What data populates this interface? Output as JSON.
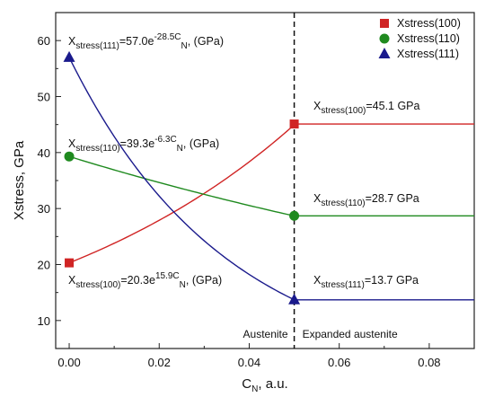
{
  "chart_data": {
    "type": "line",
    "xlabel": "C_N, a.u.",
    "ylabel": "Xstress, GPa",
    "xlim": [
      -0.003,
      0.09
    ],
    "ylim": [
      5,
      65
    ],
    "xticks": [
      "0.00",
      "0.02",
      "0.04",
      "0.06",
      "0.08"
    ],
    "xtick_values": [
      0,
      0.02,
      0.04,
      0.06,
      0.08
    ],
    "yticks": [
      "10",
      "20",
      "30",
      "40",
      "50",
      "60"
    ],
    "ytick_values": [
      10,
      20,
      30,
      40,
      50,
      60
    ],
    "grid": false,
    "legend_position": "top-right",
    "divider_x": 0.05,
    "regions": [
      "Austenite",
      "Expanded austenite"
    ],
    "series": [
      {
        "name": "Xstress(100)",
        "color": "#d02424",
        "marker": "square",
        "a": 20.3,
        "k": 15.9,
        "points": [
          [
            0,
            20.3
          ],
          [
            0.05,
            45.1
          ]
        ],
        "plateau": 45.1,
        "formula_label": "X_stress(100)=20.3e^15.9C_N, (GPa)",
        "value_label": "X_stress(100)=45.1 GPa"
      },
      {
        "name": "Xstress(110)",
        "color": "#1f8a1f",
        "marker": "circle",
        "a": 39.3,
        "k": -6.3,
        "points": [
          [
            0,
            39.3
          ],
          [
            0.05,
            28.7
          ]
        ],
        "plateau": 28.7,
        "formula_label": "X_stress(110)=39.3e^-6.3C_N, (GPa)",
        "value_label": "X_stress(110)=28.7 GPa"
      },
      {
        "name": "Xstress(111)",
        "color": "#1a1a8c",
        "marker": "triangle",
        "a": 57.0,
        "k": -28.5,
        "points": [
          [
            0,
            57.0
          ],
          [
            0.05,
            13.7
          ]
        ],
        "plateau": 13.7,
        "formula_label": "X_stress(111)=57.0e^-28.5C_N, (GPa)",
        "value_label": "X_stress(111)=13.7 GPa"
      }
    ]
  }
}
